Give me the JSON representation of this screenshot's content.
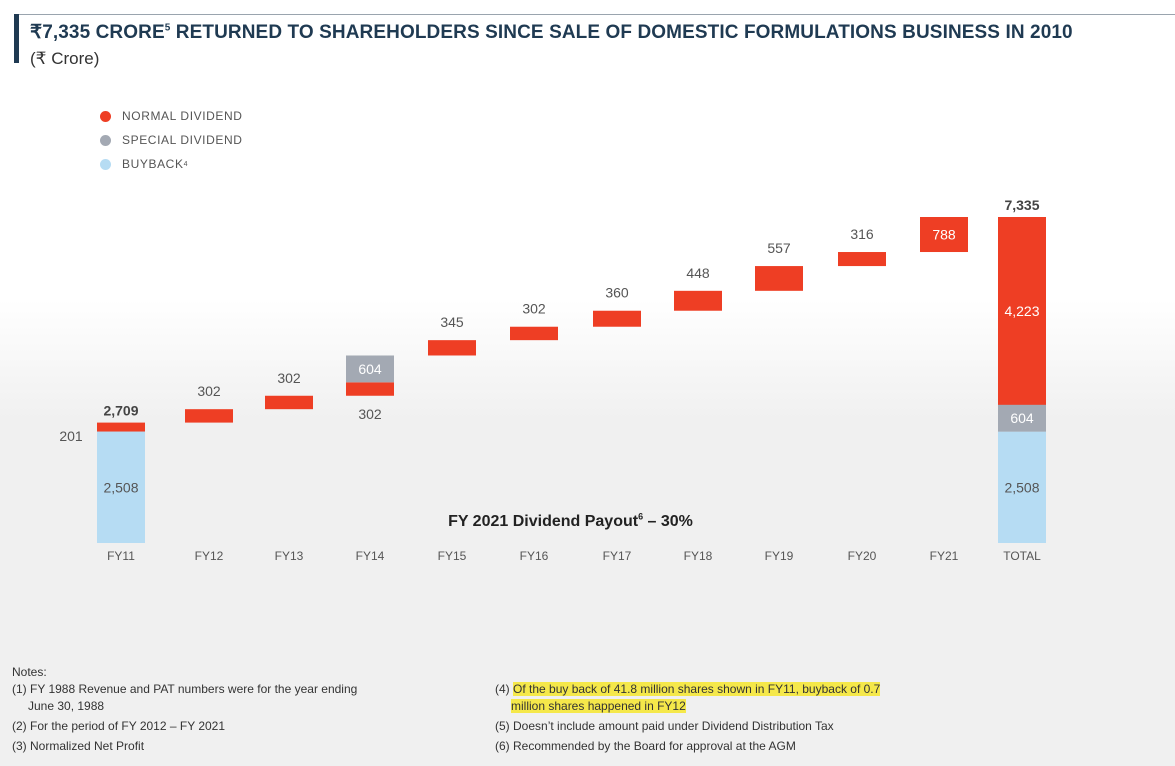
{
  "header": {
    "title_main": "₹7,335 CRORE",
    "title_sup": "5",
    "title_rest": " RETURNED TO SHAREHOLDERS SINCE SALE OF DOMESTIC FORMULATIONS BUSINESS IN 2010",
    "subtitle": "(₹ Crore)"
  },
  "colors": {
    "normal": "#ee3e24",
    "special": "#a3a9b3",
    "buyback": "#b6dcf3",
    "text": "#555555"
  },
  "chart_data": {
    "type": "waterfall",
    "title": "₹7,335 Crore returned to shareholders since sale of domestic formulations business in 2010",
    "ylabel": "₹ Crore",
    "ylim": [
      0,
      7335
    ],
    "legend": [
      {
        "name": "NORMAL DIVIDEND",
        "sup": ""
      },
      {
        "name": "SPECIAL DIVIDEND",
        "sup": ""
      },
      {
        "name": "BUYBACK",
        "sup": "4"
      }
    ],
    "legend_position": "top-left",
    "categories": [
      "FY11",
      "FY12",
      "FY13",
      "FY14",
      "FY15",
      "FY16",
      "FY17",
      "FY18",
      "FY19",
      "FY20",
      "FY21",
      "TOTAL"
    ],
    "series": [
      {
        "name": "Buyback",
        "values": [
          2508,
          0,
          0,
          0,
          0,
          0,
          0,
          0,
          0,
          0,
          0,
          2508
        ]
      },
      {
        "name": "Normal Dividend",
        "values": [
          201,
          302,
          302,
          302,
          345,
          302,
          360,
          448,
          557,
          316,
          788,
          4223
        ]
      },
      {
        "name": "Special Dividend",
        "values": [
          0,
          0,
          0,
          604,
          0,
          0,
          0,
          0,
          0,
          0,
          0,
          604
        ]
      }
    ],
    "value_labels": {
      "buyback": [
        "2,508",
        "",
        "",
        "",
        "",
        "",
        "",
        "",
        "",
        "",
        "",
        "2,508"
      ],
      "normal": [
        "201",
        "302",
        "302",
        "302",
        "345",
        "302",
        "360",
        "448",
        "557",
        "316",
        "788",
        "4,223"
      ],
      "special": [
        "",
        "",
        "",
        "604",
        "",
        "",
        "",
        "",
        "",
        "",
        "",
        "604"
      ]
    },
    "cumulative_labels": {
      "FY11": "2,709",
      "TOTAL": "7,335"
    },
    "annotation": {
      "text": "FY 2021 Dividend Payout",
      "sup": "6",
      "value": " – 30%"
    }
  },
  "notes": {
    "heading": "Notes:",
    "left": [
      "(1) FY 1988 Revenue and PAT numbers were for the year ending",
      "June 30, 1988",
      "(2) For the period of FY 2012 – FY 2021",
      "(3) Normalized Net Profit"
    ],
    "right": [
      "(4) ",
      "Of the buy back of 41.8 million shares shown in FY11, buyback of 0.7",
      "million shares happened in FY12",
      "(5) Doesn’t include amount paid under Dividend Distribution Tax",
      "(6) Recommended by the Board for approval at the AGM"
    ]
  }
}
